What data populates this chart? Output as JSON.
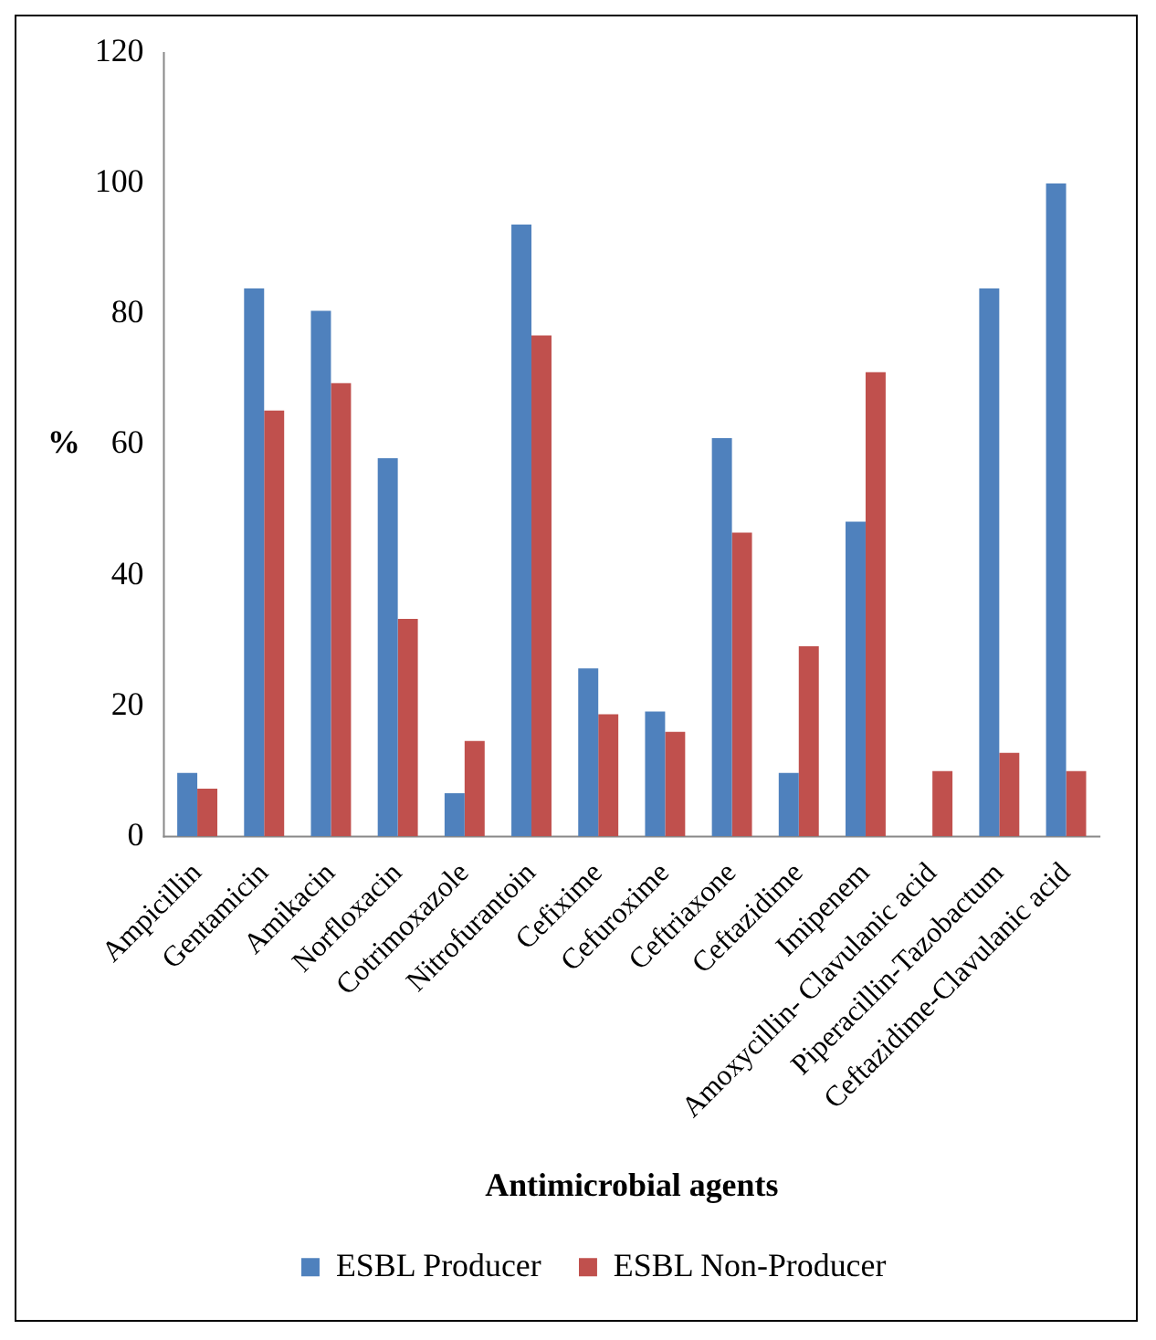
{
  "chart_data": {
    "type": "bar",
    "xlabel": "Antimicrobial agents",
    "ylabel": "%",
    "categories": [
      "Ampicillin",
      "Gentamicin",
      "Amikacin",
      "Norfloxacin",
      "Cotrimoxazole",
      "Nitrofurantoin",
      "Cefixime",
      "Cefuroxime",
      "Ceftriaxone",
      "Ceftazidime",
      "Imipenem",
      "Amoxycillin- Clavulanic acid",
      "Piperacillin-Tazobactum",
      "Ceftazidime-Clavulanic acid"
    ],
    "series": [
      {
        "name": "ESBL Producer",
        "color": "#4f81bd",
        "values": [
          9.7,
          83.9,
          80.5,
          57.9,
          6.6,
          93.7,
          25.7,
          19.1,
          61,
          9.7,
          48.2,
          0,
          83.9,
          100
        ]
      },
      {
        "name": "ESBL Non-Producer",
        "color": "#c0504d",
        "values": [
          7.3,
          65.2,
          69.4,
          33.3,
          14.6,
          76.7,
          18.7,
          16,
          46.5,
          29.1,
          71.1,
          10,
          12.8,
          10
        ]
      }
    ],
    "ylim": [
      0,
      120
    ],
    "yticks": [
      0,
      20,
      40,
      60,
      80,
      100,
      120
    ],
    "grid": false,
    "legend": "bottom"
  }
}
